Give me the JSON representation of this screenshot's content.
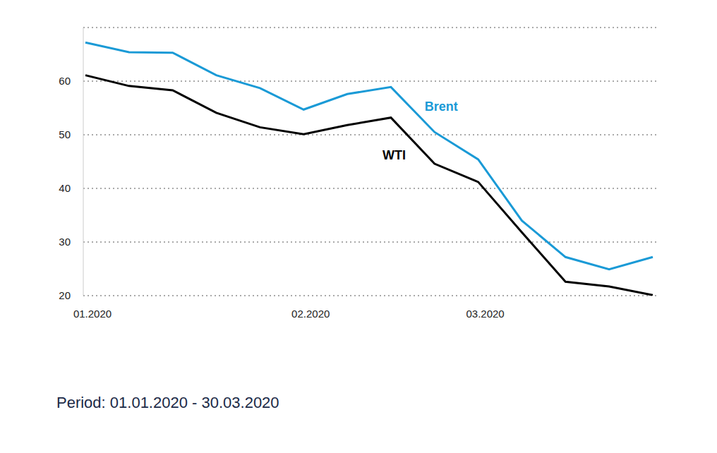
{
  "chart_data": {
    "type": "line",
    "caption": "Period: 01.01.2020 - 30.03.2020",
    "categories": [
      "01.2020",
      null,
      null,
      null,
      null,
      "02.2020",
      null,
      null,
      null,
      "03.2020",
      null,
      null,
      null,
      null
    ],
    "series": [
      {
        "name": "Brent",
        "color": "#1a9ad6",
        "values": [
          67.2,
          65.4,
          65.3,
          61.1,
          58.7,
          54.7,
          57.6,
          58.9,
          50.5,
          45.4,
          34.0,
          27.2,
          24.9,
          27.2
        ]
      },
      {
        "name": "WTI",
        "color": "#000000",
        "values": [
          61.1,
          59.1,
          58.3,
          54.1,
          51.4,
          50.1,
          51.8,
          53.2,
          44.6,
          41.2,
          31.8,
          22.6,
          21.7,
          20.1
        ]
      }
    ],
    "ylim": [
      20,
      70
    ],
    "yticks": [
      20,
      30,
      40,
      50,
      60
    ],
    "grid": true
  }
}
